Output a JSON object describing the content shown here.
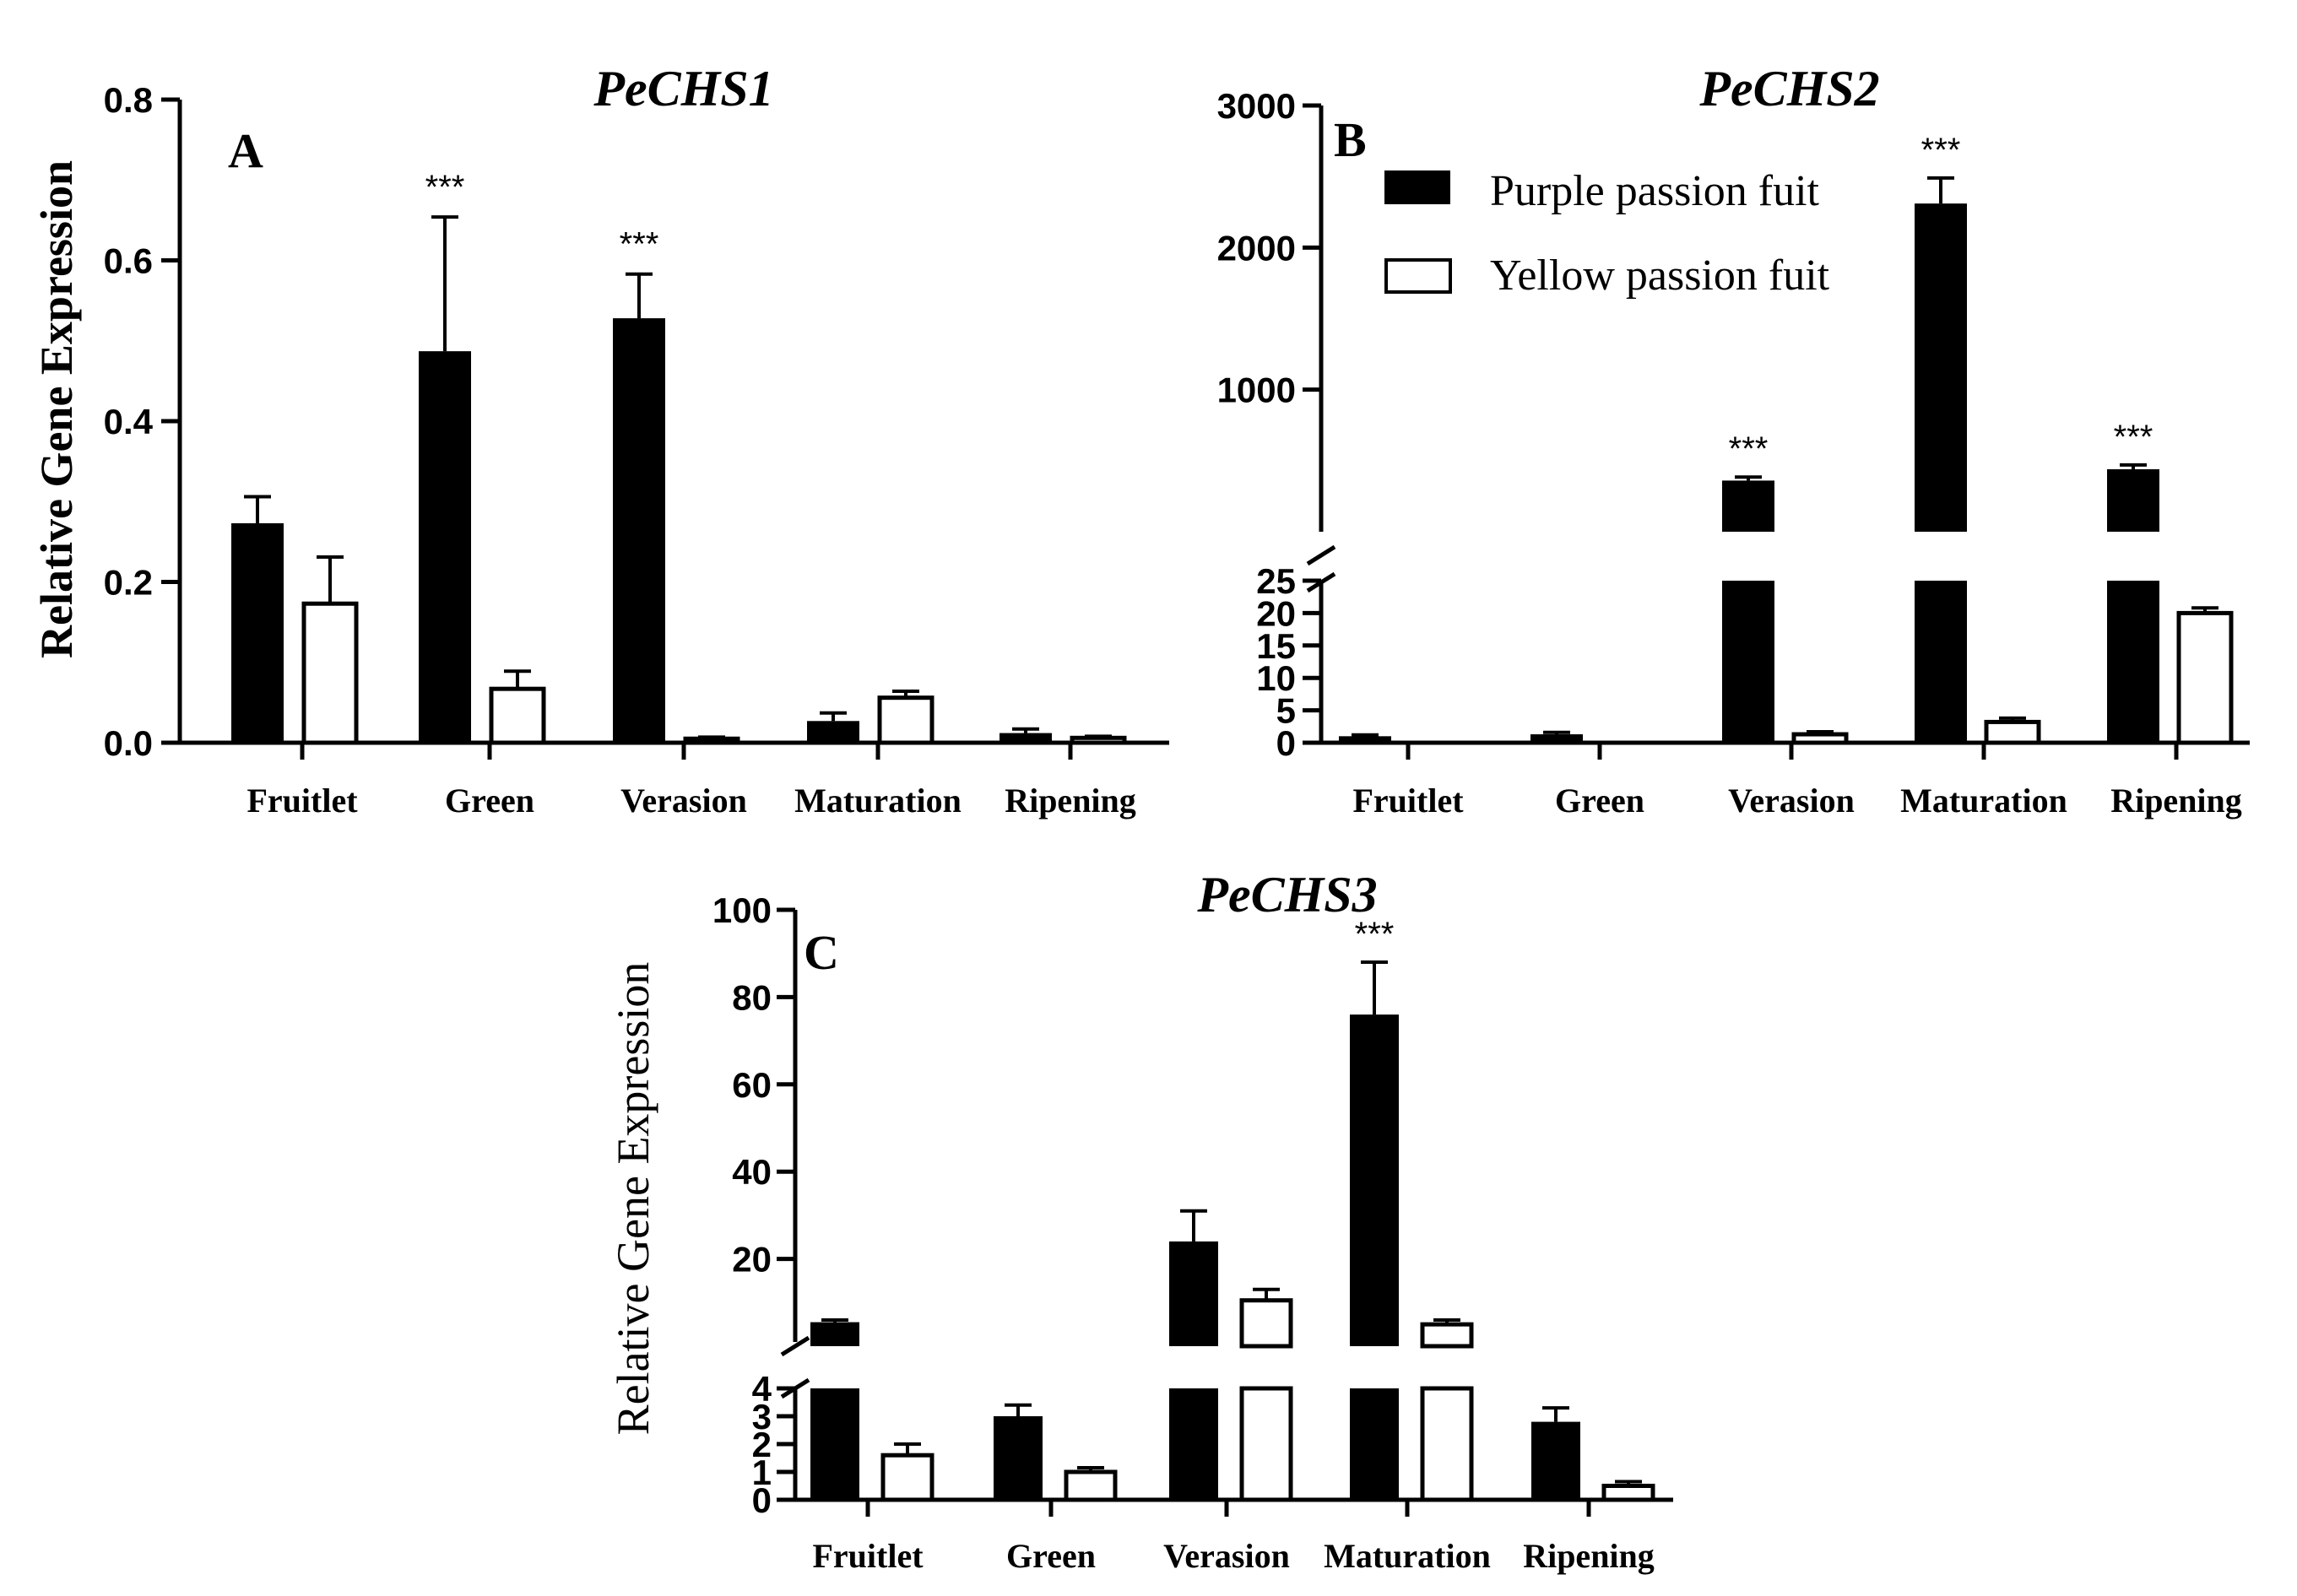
{
  "chart_data": [
    {
      "type": "bar",
      "panel": "A",
      "title": "PeCHS1",
      "ylabel": "Relative Gene Expression",
      "ylim": [
        0,
        0.8
      ],
      "yticks": [
        "0.0",
        "0.2",
        "0.4",
        "0.6",
        "0.8"
      ],
      "categories": [
        "Fruitlet",
        "Green",
        "Verasion",
        "Maturation",
        "Ripening"
      ],
      "series": [
        {
          "name": "Purple passion fuit",
          "values": [
            0.273,
            0.487,
            0.528,
            0.027,
            0.012
          ],
          "errors": [
            0.033,
            0.167,
            0.055,
            0.01,
            0.005
          ]
        },
        {
          "name": "Yellow passion fuit",
          "values": [
            0.173,
            0.067,
            0.005,
            0.056,
            0.006
          ],
          "errors": [
            0.058,
            0.022,
            0.002,
            0.008,
            0.002
          ]
        }
      ],
      "significance": [
        "",
        "***",
        "***",
        "",
        ""
      ]
    },
    {
      "type": "bar",
      "panel": "B",
      "title": "PeCHS2",
      "broken_axis": {
        "lower": [
          0,
          25
        ],
        "upper": [
          0,
          3000
        ]
      },
      "yticks_upper": [
        "1000",
        "2000",
        "3000"
      ],
      "yticks_lower": [
        "0",
        "5",
        "10",
        "15",
        "20",
        "25"
      ],
      "categories": [
        "Fruitlet",
        "Green",
        "Verasion",
        "Maturation",
        "Ripening"
      ],
      "series": [
        {
          "name": "Purple passion fuit",
          "values": [
            1.0,
            1.3,
            360,
            2310,
            440
          ],
          "errors": [
            0.2,
            0.3,
            25,
            180,
            30
          ]
        },
        {
          "name": "Yellow passion fuit",
          "values": [
            0,
            0,
            1.3,
            3.2,
            20
          ],
          "errors": [
            0,
            0,
            0.4,
            0.6,
            0.8
          ]
        }
      ],
      "significance": [
        "",
        "",
        "***",
        "***",
        "***"
      ]
    },
    {
      "type": "bar",
      "panel": "C",
      "title": "PeCHS3",
      "ylabel": "Relative Gene Expression",
      "broken_axis": {
        "lower": [
          0,
          4
        ],
        "upper": [
          0,
          100
        ]
      },
      "yticks_upper": [
        "20",
        "40",
        "60",
        "80",
        "100"
      ],
      "yticks_lower": [
        "0",
        "1",
        "2",
        "3",
        "4"
      ],
      "categories": [
        "Fruitlet",
        "Green",
        "Verasion",
        "Maturation",
        "Ripening"
      ],
      "series": [
        {
          "name": "Purple passion fuit",
          "values": [
            5.5,
            3.0,
            24,
            76,
            2.8
          ],
          "errors": [
            0.5,
            0.4,
            7,
            12,
            0.5
          ]
        },
        {
          "name": "Yellow passion fuit",
          "values": [
            1.6,
            1.0,
            10.5,
            5.0,
            0.5
          ],
          "errors": [
            0.4,
            0.15,
            2.5,
            1,
            0.15
          ]
        }
      ],
      "significance": [
        "",
        "",
        "",
        "***",
        ""
      ]
    }
  ],
  "legend": {
    "purple": "Purple passion fuit",
    "yellow": "Yellow passion fuit"
  },
  "colors": {
    "purple": "#000000",
    "yellow": "#ffffff",
    "axis": "#000000"
  }
}
